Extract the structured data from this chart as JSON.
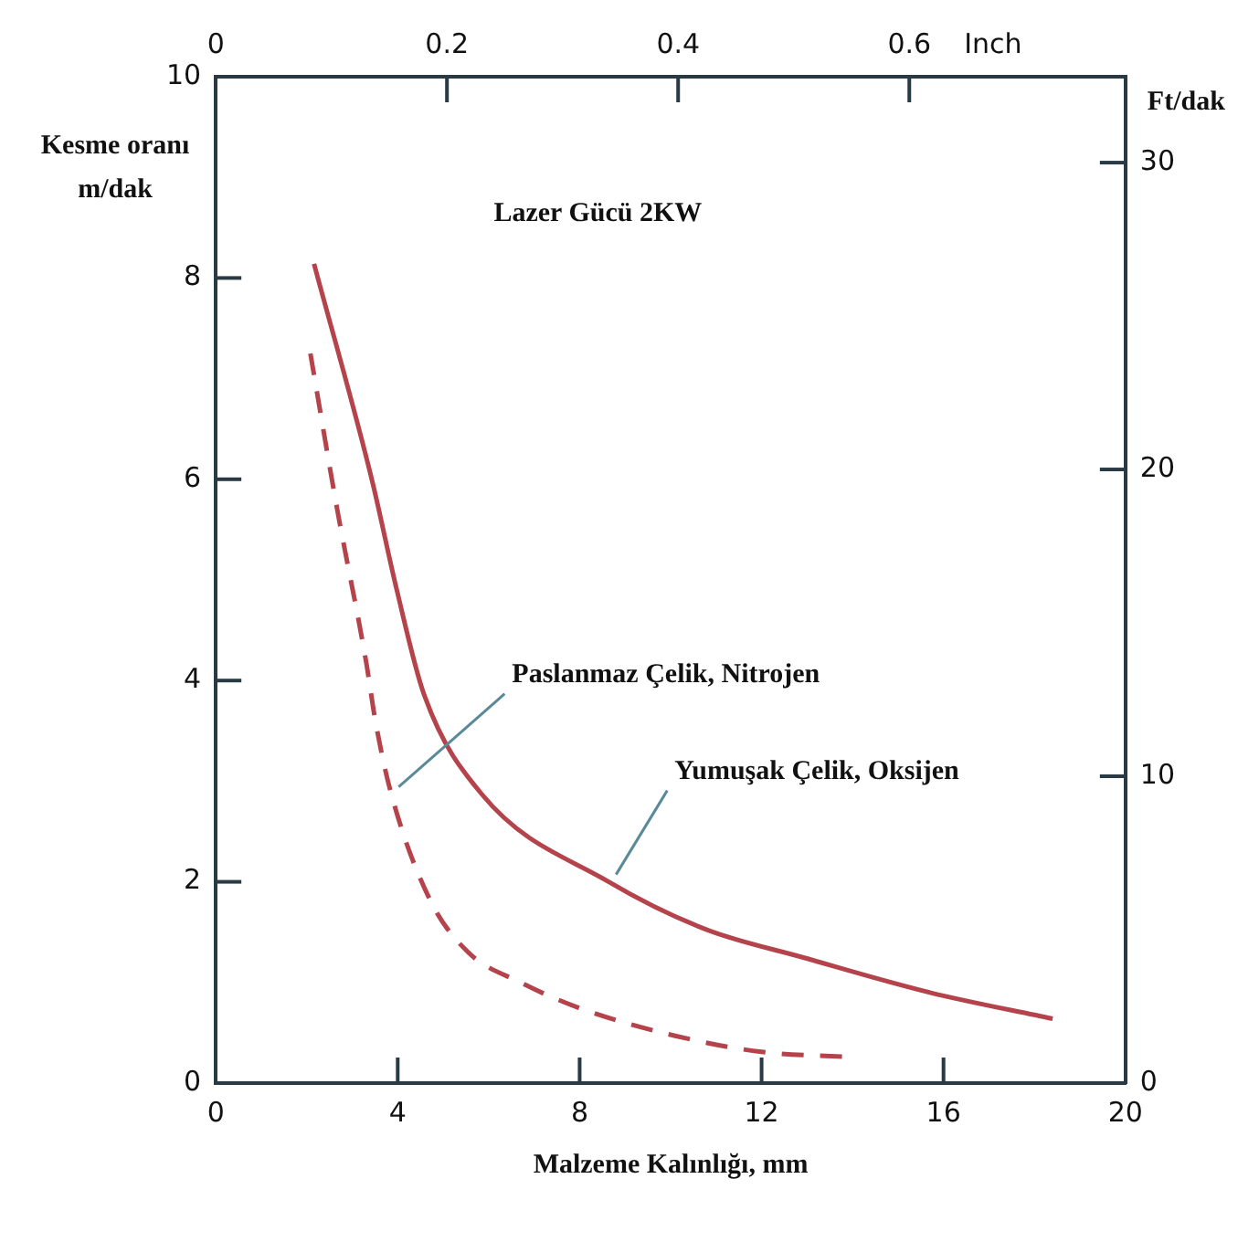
{
  "chart_data": {
    "type": "line",
    "xlabel": "Malzeme Kalınlığı, mm",
    "ylabel": "Kesme oranı m/dak",
    "y2label": "Ft/dak",
    "x2label": "Inch",
    "annotations": [
      "Lazer Gücü 2KW",
      {
        "text": "Paslanmaz Çelik, Nitrojen",
        "x": 3.86,
        "y": 2.87
      },
      {
        "text": "Yumuşak Çelik, Oksijen",
        "x": 8.64,
        "y": 2.0
      }
    ],
    "xlim": [
      0,
      20
    ],
    "xticks": [
      0,
      4,
      8,
      12,
      16,
      20
    ],
    "ylim": [
      0,
      10
    ],
    "yticks": [
      0,
      2,
      4,
      6,
      8,
      10
    ],
    "y2lim": [
      0,
      32.8
    ],
    "y2ticks": [
      0,
      10,
      20,
      30
    ],
    "x2lim": [
      0,
      0.787
    ],
    "x2ticks": [
      0,
      0.2,
      0.4,
      0.6
    ],
    "grid": false,
    "legend": false,
    "marker": "none",
    "series": [
      {
        "color": "#b4434b",
        "line_style": "solid",
        "x": [
          2.16,
          3.43,
          3.98,
          4.58,
          5.85,
          8.64,
          10.76,
          12.9,
          15.7,
          18.4
        ],
        "values": [
          8.14,
          6.0,
          4.9,
          3.86,
          2.87,
          2.0,
          1.53,
          1.25,
          0.9,
          0.64
        ]
      },
      {
        "color": "#b4434b",
        "line_style": "dashed",
        "x": [
          2.08,
          2.67,
          3.3,
          3.52,
          3.86,
          4.7,
          5.55,
          6.7,
          7.97,
          10.1,
          12.0,
          13.9
        ],
        "values": [
          7.25,
          5.7,
          4.2,
          3.57,
          2.87,
          1.83,
          1.3,
          1.0,
          0.75,
          0.47,
          0.31,
          0.26
        ]
      }
    ]
  }
}
